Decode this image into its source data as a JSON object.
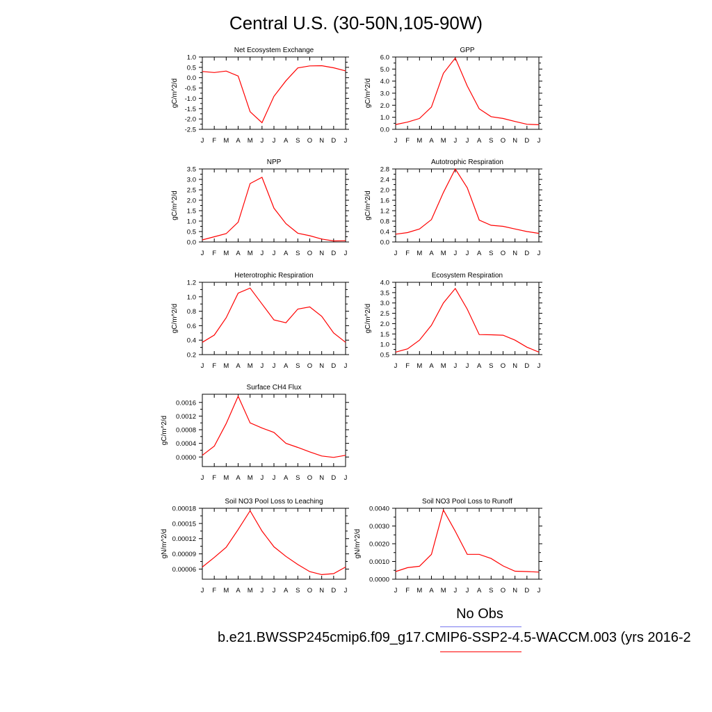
{
  "figure": {
    "title": "Central U.S. (30-50N,105-90W)",
    "legend": {
      "obs_label": "No Obs",
      "obs_color": "#7777ee",
      "model_label": "b.e21.BWSSP245cmip6.f09_g17.CMIP6-SSP2-4.5-WACCM.003 (yrs 2016-2",
      "model_color": "#ff0000"
    }
  },
  "chart_data": [
    {
      "type": "line",
      "title": "Net Ecosystem Exchange",
      "ylabel": "gC/m^2/d",
      "categories": [
        "J",
        "F",
        "M",
        "A",
        "M",
        "J",
        "J",
        "A",
        "S",
        "O",
        "N",
        "D",
        "J"
      ],
      "ylim": [
        -2.5,
        1.0
      ],
      "yticks": [
        "1.0",
        "0.5",
        "0.0",
        "-0.5",
        "-1.0",
        "-1.5",
        "-2.0",
        "-2.5"
      ],
      "series": [
        {
          "color": "#ff0000",
          "values": [
            0.3,
            0.25,
            0.32,
            0.08,
            -1.65,
            -2.18,
            -0.9,
            -0.15,
            0.47,
            0.57,
            0.58,
            0.48,
            0.33
          ]
        }
      ]
    },
    {
      "type": "line",
      "title": "GPP",
      "ylabel": "gC/m^2/d",
      "categories": [
        "J",
        "F",
        "M",
        "A",
        "M",
        "J",
        "J",
        "A",
        "S",
        "O",
        "N",
        "D",
        "J"
      ],
      "ylim": [
        0.0,
        6.0
      ],
      "yticks": [
        "6.0",
        "5.0",
        "4.0",
        "3.0",
        "2.0",
        "1.0",
        "0.0"
      ],
      "series": [
        {
          "color": "#ff0000",
          "values": [
            0.4,
            0.6,
            0.9,
            1.85,
            4.65,
            5.92,
            3.6,
            1.7,
            1.05,
            0.9,
            0.65,
            0.42,
            0.38
          ]
        }
      ]
    },
    {
      "type": "line",
      "title": "NPP",
      "ylabel": "gC/m^2/d",
      "categories": [
        "J",
        "F",
        "M",
        "A",
        "M",
        "J",
        "J",
        "A",
        "S",
        "O",
        "N",
        "D",
        "J"
      ],
      "ylim": [
        0.0,
        3.5
      ],
      "yticks": [
        "3.5",
        "3.0",
        "2.5",
        "2.0",
        "1.5",
        "1.0",
        "0.5",
        "0.0"
      ],
      "series": [
        {
          "color": "#ff0000",
          "values": [
            0.1,
            0.25,
            0.4,
            0.95,
            2.8,
            3.1,
            1.62,
            0.88,
            0.42,
            0.3,
            0.14,
            0.05,
            0.06
          ]
        }
      ]
    },
    {
      "type": "line",
      "title": "Autotrophic Respiration",
      "ylabel": "gC/m^2/d",
      "categories": [
        "J",
        "F",
        "M",
        "A",
        "M",
        "J",
        "J",
        "A",
        "S",
        "O",
        "N",
        "D",
        "J"
      ],
      "ylim": [
        0.0,
        2.8
      ],
      "yticks": [
        "2.8",
        "2.4",
        "2.0",
        "1.6",
        "1.2",
        "0.8",
        "0.4",
        "0.0"
      ],
      "series": [
        {
          "color": "#ff0000",
          "values": [
            0.3,
            0.36,
            0.5,
            0.86,
            1.9,
            2.8,
            2.08,
            0.84,
            0.64,
            0.6,
            0.5,
            0.4,
            0.33
          ]
        }
      ]
    },
    {
      "type": "line",
      "title": "Heterotrophic Respiration",
      "ylabel": "gC/m^2/d",
      "categories": [
        "J",
        "F",
        "M",
        "A",
        "M",
        "J",
        "J",
        "A",
        "S",
        "O",
        "N",
        "D",
        "J"
      ],
      "ylim": [
        0.2,
        1.2
      ],
      "yticks": [
        "1.2",
        "1.0",
        "0.8",
        "0.6",
        "0.4",
        "0.2"
      ],
      "series": [
        {
          "color": "#ff0000",
          "values": [
            0.37,
            0.47,
            0.71,
            1.05,
            1.12,
            0.9,
            0.68,
            0.64,
            0.83,
            0.86,
            0.73,
            0.5,
            0.37
          ]
        }
      ]
    },
    {
      "type": "line",
      "title": "Ecosystem Respiration",
      "ylabel": "gC/m^2/d",
      "categories": [
        "J",
        "F",
        "M",
        "A",
        "M",
        "J",
        "J",
        "A",
        "S",
        "O",
        "N",
        "D",
        "J"
      ],
      "ylim": [
        0.5,
        4.0
      ],
      "yticks": [
        "4.0",
        "3.5",
        "3.0",
        "2.5",
        "2.0",
        "1.5",
        "1.0",
        "0.5"
      ],
      "series": [
        {
          "color": "#ff0000",
          "values": [
            0.62,
            0.78,
            1.2,
            1.92,
            3.0,
            3.7,
            2.7,
            1.47,
            1.46,
            1.44,
            1.2,
            0.86,
            0.62
          ]
        }
      ]
    },
    {
      "type": "line",
      "title": "Surface CH4 Flux",
      "ylabel": "gC/m^2/d",
      "categories": [
        "J",
        "F",
        "M",
        "A",
        "M",
        "J",
        "J",
        "A",
        "S",
        "O",
        "N",
        "D",
        "J"
      ],
      "ylim": [
        -0.00028,
        0.00184
      ],
      "yticks": [
        "0.0016",
        "0.0012",
        "0.0008",
        "0.0004",
        "0.0000"
      ],
      "series": [
        {
          "color": "#ff0000",
          "values": [
            5e-05,
            0.00032,
            0.00098,
            0.00178,
            0.001,
            0.00085,
            0.00072,
            0.0004,
            0.00028,
            0.00015,
            3e-05,
            -1e-05,
            5e-05
          ]
        }
      ]
    },
    {
      "type": "line",
      "title": "Soil NO3 Pool Loss to Leaching",
      "ylabel": "gN/m^2/d",
      "categories": [
        "J",
        "F",
        "M",
        "A",
        "M",
        "J",
        "J",
        "A",
        "S",
        "O",
        "N",
        "D",
        "J"
      ],
      "ylim": [
        4e-05,
        0.00018
      ],
      "yticks": [
        "0.00018",
        "0.00015",
        "0.00012",
        "0.00009",
        "0.00006"
      ],
      "series": [
        {
          "color": "#ff0000",
          "values": [
            6.4e-05,
            8.3e-05,
            0.000103,
            0.000138,
            0.000175,
            0.000135,
            0.000104,
            8.5e-05,
            6.9e-05,
            5.5e-05,
            4.9e-05,
            5.1e-05,
            6.4e-05
          ]
        }
      ]
    },
    {
      "type": "line",
      "title": "Soil NO3 Pool Loss to Runoff",
      "ylabel": "gN/m^2/d",
      "categories": [
        "J",
        "F",
        "M",
        "A",
        "M",
        "J",
        "J",
        "A",
        "S",
        "O",
        "N",
        "D",
        "J"
      ],
      "ylim": [
        0.0,
        0.004
      ],
      "yticks": [
        "0.0040",
        "0.0030",
        "0.0020",
        "0.0010",
        "0.0000"
      ],
      "series": [
        {
          "color": "#ff0000",
          "values": [
            0.00043,
            0.00065,
            0.00073,
            0.0014,
            0.0039,
            0.0027,
            0.0014,
            0.0014,
            0.00117,
            0.00075,
            0.00045,
            0.00043,
            0.0004
          ]
        }
      ]
    }
  ]
}
